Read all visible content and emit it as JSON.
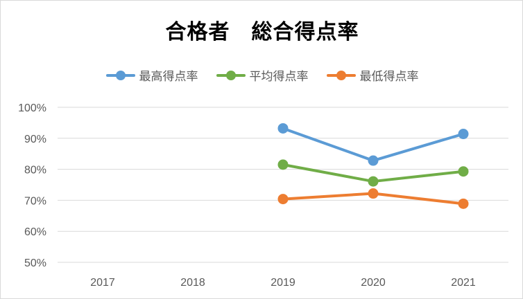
{
  "chart_data": {
    "type": "line",
    "title": "合格者　総合得点率",
    "categories": [
      "2017",
      "2018",
      "2019",
      "2020",
      "2021"
    ],
    "yticks": [
      "50%",
      "60%",
      "70%",
      "80%",
      "90%",
      "100%"
    ],
    "ylim": [
      50,
      100
    ],
    "grid": true,
    "legend_position": "top",
    "series": [
      {
        "name": "最高得点率",
        "color": "#5b9bd5",
        "values": [
          null,
          null,
          93.2,
          82.8,
          91.4
        ]
      },
      {
        "name": "平均得点率",
        "color": "#70ad47",
        "values": [
          null,
          null,
          81.5,
          76.1,
          79.3
        ]
      },
      {
        "name": "最低得点率",
        "color": "#ed7d31",
        "values": [
          null,
          null,
          70.4,
          72.2,
          68.9
        ]
      }
    ]
  }
}
